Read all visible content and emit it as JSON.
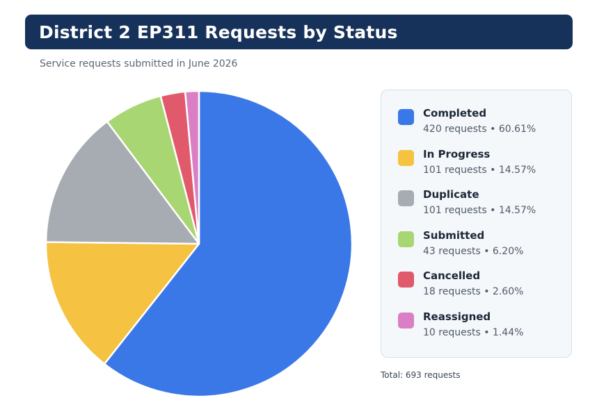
{
  "header": {
    "title": "District 2 EP311 Requests by Status",
    "subtitle": "Service requests submitted in June 2026"
  },
  "chart_data": {
    "type": "pie",
    "title": "District 2 EP311 Requests by Status",
    "subtitle": "Service requests submitted in June 2026",
    "start_angle_deg": 0,
    "direction": "clockwise",
    "legend_placement": "right",
    "categories": [
      "Completed",
      "In Progress",
      "Duplicate",
      "Submitted",
      "Cancelled",
      "Reassigned"
    ],
    "values": [
      420,
      101,
      101,
      43,
      18,
      10
    ],
    "colors": [
      "#3b78e7",
      "#f5c242",
      "#a7abb2",
      "#a8d672",
      "#e05a6b",
      "#db7fc4"
    ],
    "details": [
      "420 requests  •  60.61%",
      "101 requests  •  14.57%",
      "101 requests  •  14.57%",
      "43 requests  •  6.20%",
      "18 requests  •  2.60%",
      "10 requests  •  1.44%"
    ],
    "total_label": "Total: 693 requests"
  }
}
